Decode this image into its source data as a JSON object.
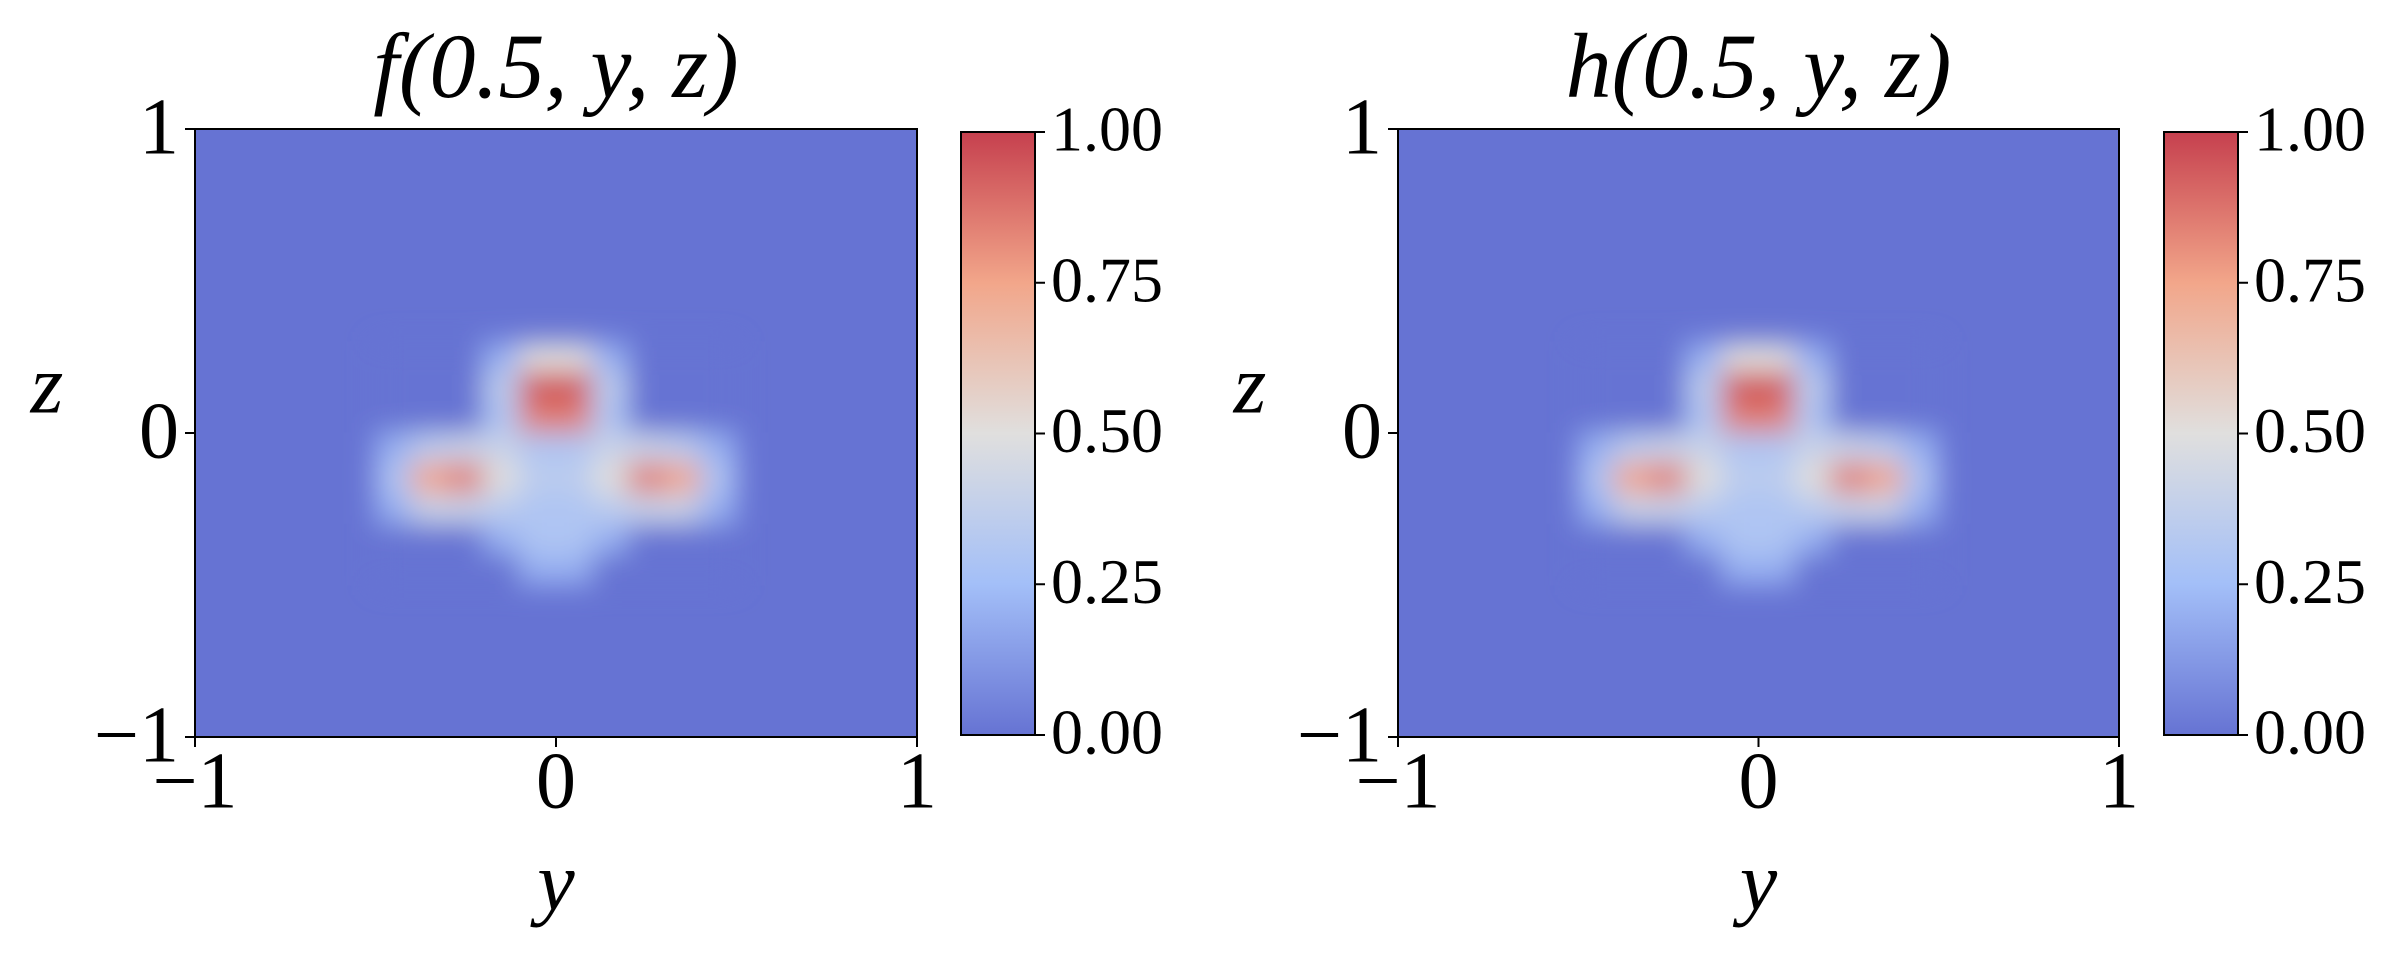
{
  "chart_data": [
    {
      "type": "heatmap",
      "title": "f(0.5, y, z)",
      "xlabel": "y",
      "ylabel": "z",
      "xlim": [
        -1,
        1
      ],
      "ylim": [
        -1,
        1
      ],
      "xticks": [
        {
          "value": -1,
          "label": "−1"
        },
        0,
        1
      ],
      "yticks": [
        {
          "value": -1,
          "label": "−1"
        },
        0,
        1
      ],
      "x": [
        -0.45,
        -0.35,
        -0.25,
        -0.15,
        -0.05,
        0.05,
        0.15,
        0.25,
        0.35,
        0.45
      ],
      "y": [
        0.25,
        0.15,
        0.05,
        -0.05,
        -0.15,
        -0.25,
        -0.35,
        -0.45
      ],
      "values": [
        [
          0,
          0,
          0,
          0.2,
          0.5,
          0.5,
          0.2,
          0,
          0,
          0
        ],
        [
          0,
          0,
          0,
          0.35,
          0.95,
          0.95,
          0.35,
          0,
          0,
          0
        ],
        [
          0,
          0,
          0,
          0.3,
          0.85,
          0.85,
          0.3,
          0,
          0,
          0
        ],
        [
          0.2,
          0.35,
          0.4,
          0.4,
          0.3,
          0.3,
          0.4,
          0.4,
          0.35,
          0.2
        ],
        [
          0.3,
          0.75,
          0.85,
          0.5,
          0.35,
          0.35,
          0.5,
          0.85,
          0.75,
          0.3
        ],
        [
          0.2,
          0.4,
          0.4,
          0.35,
          0.3,
          0.3,
          0.35,
          0.4,
          0.4,
          0.2
        ],
        [
          0,
          0,
          0,
          0.2,
          0.3,
          0.3,
          0.2,
          0,
          0,
          0
        ],
        [
          0,
          0,
          0,
          0,
          0.2,
          0.2,
          0,
          0,
          0,
          0
        ]
      ],
      "clim": [
        0,
        1
      ],
      "cticks": [
        {
          "value": 0,
          "label": "0.00"
        },
        {
          "value": 0.25,
          "label": "0.25"
        },
        {
          "value": 0.5,
          "label": "0.50"
        },
        {
          "value": 0.75,
          "label": "0.75"
        },
        {
          "value": 1,
          "label": "1.00"
        }
      ],
      "colormap": [
        "#6673d3",
        "#a3bff8",
        "#e0dfde",
        "#f2a68a",
        "#c6404e"
      ]
    },
    {
      "type": "heatmap",
      "title": "h(0.5, y, z)",
      "xlabel": "y",
      "ylabel": "z",
      "xlim": [
        -1,
        1
      ],
      "ylim": [
        -1,
        1
      ],
      "xticks": [
        {
          "value": -1,
          "label": "−1"
        },
        0,
        1
      ],
      "yticks": [
        {
          "value": -1,
          "label": "−1"
        },
        0,
        1
      ],
      "x": [
        -0.45,
        -0.35,
        -0.25,
        -0.15,
        -0.05,
        0.05,
        0.15,
        0.25,
        0.35,
        0.45
      ],
      "y": [
        0.25,
        0.15,
        0.05,
        -0.05,
        -0.15,
        -0.25,
        -0.35,
        -0.45
      ],
      "values": [
        [
          0,
          0,
          0,
          0.2,
          0.5,
          0.5,
          0.2,
          0,
          0,
          0
        ],
        [
          0,
          0,
          0,
          0.35,
          0.95,
          0.95,
          0.35,
          0,
          0,
          0
        ],
        [
          0,
          0,
          0,
          0.3,
          0.85,
          0.85,
          0.3,
          0,
          0,
          0
        ],
        [
          0.2,
          0.35,
          0.4,
          0.4,
          0.3,
          0.3,
          0.4,
          0.4,
          0.35,
          0.2
        ],
        [
          0.3,
          0.75,
          0.85,
          0.5,
          0.35,
          0.35,
          0.5,
          0.85,
          0.75,
          0.3
        ],
        [
          0.2,
          0.4,
          0.4,
          0.35,
          0.3,
          0.3,
          0.35,
          0.4,
          0.4,
          0.2
        ],
        [
          0,
          0,
          0,
          0.2,
          0.3,
          0.3,
          0.2,
          0,
          0,
          0
        ],
        [
          0,
          0,
          0,
          0,
          0.2,
          0.2,
          0,
          0,
          0,
          0
        ]
      ],
      "clim": [
        0,
        1
      ],
      "cticks": [
        {
          "value": 0,
          "label": "0.00"
        },
        {
          "value": 0.25,
          "label": "0.25"
        },
        {
          "value": 0.5,
          "label": "0.50"
        },
        {
          "value": 0.75,
          "label": "0.75"
        },
        {
          "value": 1,
          "label": "1.00"
        }
      ],
      "colormap": [
        "#6673d3",
        "#a3bff8",
        "#e0dfde",
        "#f2a68a",
        "#c6404e"
      ]
    }
  ]
}
